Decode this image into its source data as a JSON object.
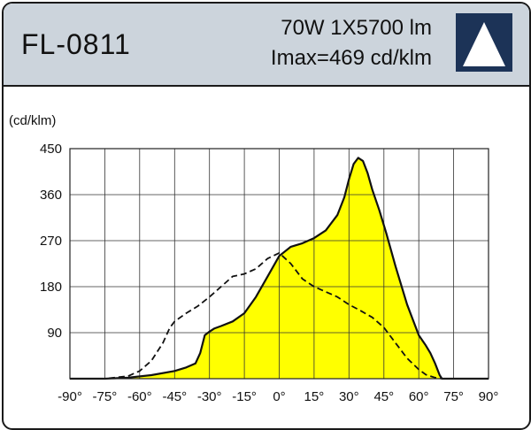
{
  "header": {
    "model": "FL-0811",
    "spec_line1": "70W  1X5700  lm",
    "spec_line2": "Imax=469 cd/klm",
    "logo_icon": "triangle-logo-icon",
    "background_color": "#ccd4dc",
    "logo_color": "#1c3357"
  },
  "chart_data": {
    "type": "area",
    "ylabel": "(cd/klm)",
    "xlabel": "",
    "x_ticks": [
      "-90°",
      "-75°",
      "-60°",
      "-45°",
      "-30°",
      "-15°",
      "0°",
      "15°",
      "30°",
      "45°",
      "60°",
      "75°",
      "90°"
    ],
    "y_ticks": [
      "90",
      "180",
      "270",
      "360",
      "450"
    ],
    "xlim": [
      -90,
      90
    ],
    "ylim": [
      0,
      450
    ],
    "grid": true,
    "series": [
      {
        "style": "solid-filled",
        "fill": "#ffff00",
        "x": [
          -90,
          -75,
          -65,
          -55,
          -45,
          -40,
          -36,
          -34,
          -32,
          -30,
          -28,
          -25,
          -20,
          -15,
          -10,
          -5,
          0,
          5,
          10,
          15,
          20,
          25,
          28,
          30,
          32,
          34,
          36,
          38,
          40,
          43,
          46,
          50,
          55,
          60,
          63,
          65,
          67,
          69,
          70,
          72,
          75,
          80,
          90
        ],
        "y": [
          0,
          0,
          2,
          7,
          15,
          22,
          30,
          50,
          85,
          92,
          98,
          103,
          112,
          128,
          160,
          200,
          240,
          258,
          265,
          275,
          290,
          320,
          355,
          390,
          420,
          432,
          426,
          402,
          370,
          330,
          285,
          220,
          145,
          85,
          65,
          50,
          30,
          7,
          0,
          0,
          0,
          0,
          0
        ]
      },
      {
        "style": "dashed",
        "x": [
          -90,
          -75,
          -65,
          -60,
          -55,
          -50,
          -47,
          -45,
          -40,
          -35,
          -30,
          -25,
          -20,
          -15,
          -10,
          -5,
          0,
          5,
          10,
          15,
          20,
          25,
          30,
          35,
          40,
          45,
          50,
          55,
          60,
          63,
          65,
          67,
          70,
          75,
          90
        ],
        "y": [
          0,
          0,
          5,
          15,
          35,
          70,
          100,
          112,
          128,
          142,
          160,
          180,
          200,
          205,
          215,
          235,
          246,
          225,
          195,
          180,
          170,
          160,
          145,
          133,
          120,
          100,
          70,
          40,
          18,
          8,
          5,
          2,
          0,
          0,
          0
        ]
      }
    ]
  }
}
